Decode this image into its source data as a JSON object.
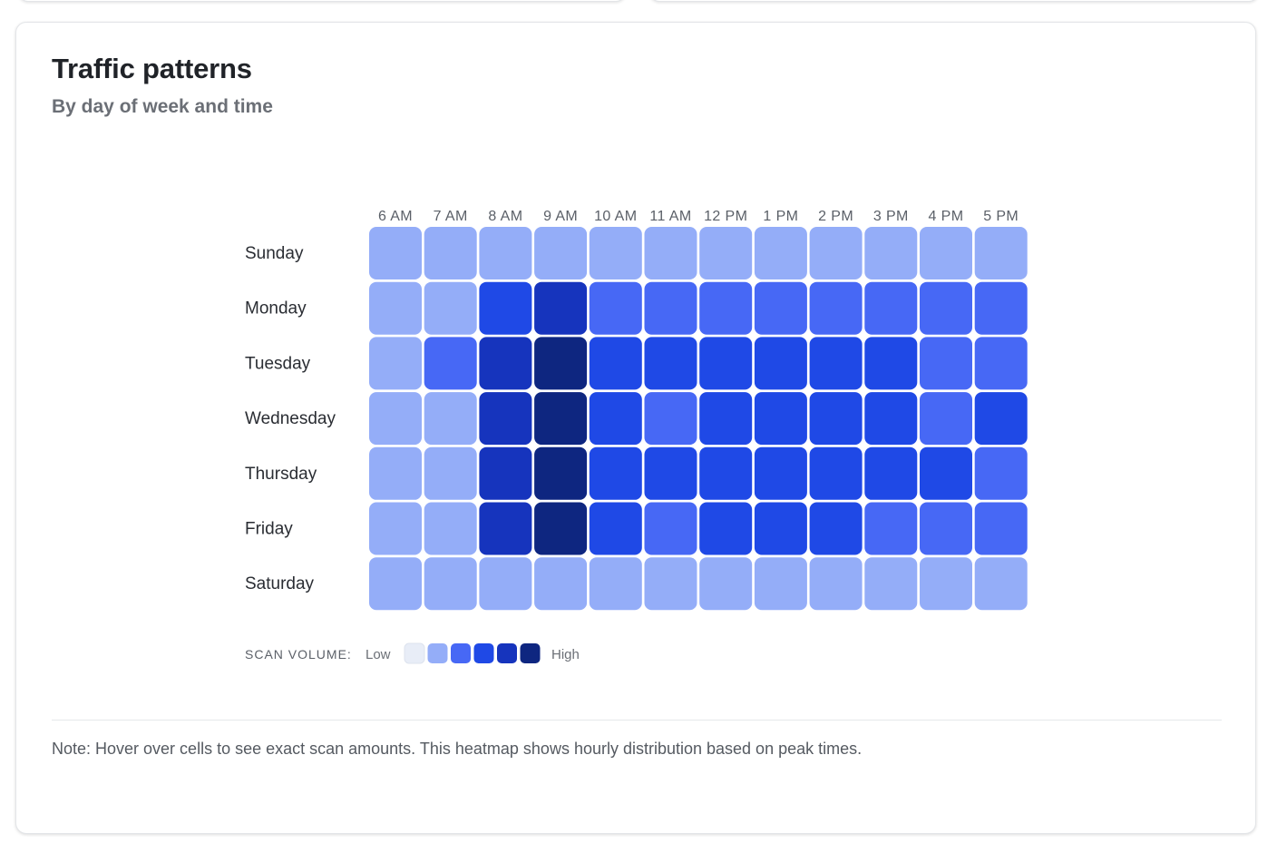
{
  "card": {
    "title": "Traffic patterns",
    "subtitle": "By day of week and time",
    "note": "Note: Hover over cells to see exact scan amounts. This heatmap shows hourly distribution based on peak times."
  },
  "legend": {
    "label": "SCAN VOLUME:",
    "low": "Low",
    "high": "High",
    "swatches": [
      "#e8edf7",
      "#94adf8",
      "#4768f5",
      "#1f49e6",
      "#1634bd",
      "#0e2680"
    ]
  },
  "chart_data": {
    "type": "heatmap",
    "title": "Traffic patterns",
    "subtitle": "By day of week and time",
    "x": [
      "6 AM",
      "7 AM",
      "8 AM",
      "9 AM",
      "10 AM",
      "11 AM",
      "12 PM",
      "1 PM",
      "2 PM",
      "3 PM",
      "4 PM",
      "5 PM"
    ],
    "y": [
      "Sunday",
      "Monday",
      "Tuesday",
      "Wednesday",
      "Thursday",
      "Friday",
      "Saturday"
    ],
    "scale": [
      "Low",
      "High"
    ],
    "levels": 6,
    "values": [
      [
        1,
        1,
        1,
        1,
        1,
        1,
        1,
        1,
        1,
        1,
        1,
        1
      ],
      [
        1,
        1,
        3,
        4,
        2,
        2,
        2,
        2,
        2,
        2,
        2,
        2
      ],
      [
        1,
        2,
        4,
        5,
        3,
        3,
        3,
        3,
        3,
        3,
        2,
        2
      ],
      [
        1,
        1,
        4,
        5,
        3,
        2,
        3,
        3,
        3,
        3,
        2,
        3
      ],
      [
        1,
        1,
        4,
        5,
        3,
        3,
        3,
        3,
        3,
        3,
        3,
        2
      ],
      [
        1,
        1,
        4,
        5,
        3,
        2,
        3,
        3,
        3,
        2,
        2,
        2
      ],
      [
        1,
        1,
        1,
        1,
        1,
        1,
        1,
        1,
        1,
        1,
        1,
        1
      ]
    ]
  }
}
